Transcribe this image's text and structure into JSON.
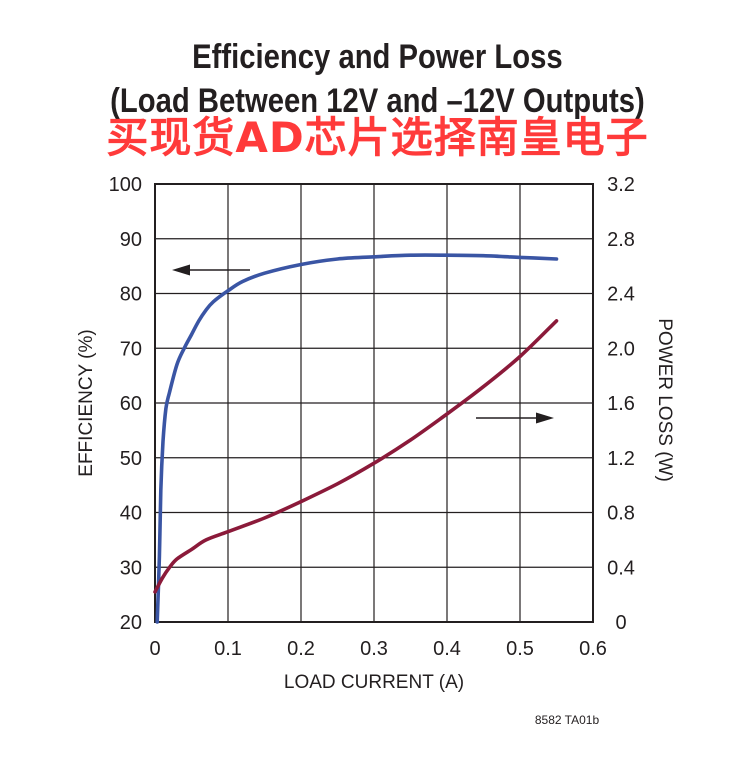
{
  "title_line1": "Efficiency and Power Loss",
  "title_line2": "(Load Between 12V and –12V Outputs)",
  "watermark": "买现货AD芯片选择南皇电子",
  "figure_code": "8582 TA01b",
  "chart_data": {
    "type": "line",
    "xlabel": "LOAD CURRENT (A)",
    "ylabel_left": "EFFICIENCY (%)",
    "ylabel_right": "POWER LOSS (W)",
    "xlim": [
      0,
      0.6
    ],
    "ylim_left": [
      20,
      100
    ],
    "ylim_right": [
      0,
      3.2
    ],
    "x_ticks": [
      "0",
      "0.1",
      "0.2",
      "0.3",
      "0.4",
      "0.5",
      "0.6"
    ],
    "y_ticks_left": [
      "20",
      "30",
      "40",
      "50",
      "60",
      "70",
      "80",
      "90",
      "100"
    ],
    "y_ticks_right": [
      "0",
      "0.4",
      "0.8",
      "1.2",
      "1.6",
      "2.0",
      "2.4",
      "2.8",
      "3.2"
    ],
    "grid": true,
    "series": [
      {
        "axis": "left",
        "color": "#3a55a4",
        "arrow": "left",
        "points": [
          [
            0.003,
            20
          ],
          [
            0.006,
            32
          ],
          [
            0.008,
            44
          ],
          [
            0.011,
            53
          ],
          [
            0.015,
            59
          ],
          [
            0.02,
            62
          ],
          [
            0.03,
            67
          ],
          [
            0.04,
            70
          ],
          [
            0.05,
            72.5
          ],
          [
            0.06,
            75
          ],
          [
            0.07,
            77
          ],
          [
            0.08,
            78.5
          ],
          [
            0.1,
            80.5
          ],
          [
            0.12,
            82.2
          ],
          [
            0.15,
            83.7
          ],
          [
            0.2,
            85.3
          ],
          [
            0.25,
            86.3
          ],
          [
            0.3,
            86.7
          ],
          [
            0.35,
            87
          ],
          [
            0.4,
            87
          ],
          [
            0.45,
            86.9
          ],
          [
            0.5,
            86.6
          ],
          [
            0.55,
            86.3
          ]
        ]
      },
      {
        "axis": "right",
        "color": "#8b1a3a",
        "arrow": "right",
        "points": [
          [
            0,
            0.22
          ],
          [
            0.01,
            0.32
          ],
          [
            0.02,
            0.4
          ],
          [
            0.03,
            0.46
          ],
          [
            0.05,
            0.53
          ],
          [
            0.07,
            0.6
          ],
          [
            0.1,
            0.66
          ],
          [
            0.15,
            0.76
          ],
          [
            0.2,
            0.88
          ],
          [
            0.25,
            1.01
          ],
          [
            0.3,
            1.16
          ],
          [
            0.35,
            1.33
          ],
          [
            0.4,
            1.52
          ],
          [
            0.45,
            1.72
          ],
          [
            0.5,
            1.94
          ],
          [
            0.55,
            2.2
          ]
        ]
      }
    ]
  }
}
